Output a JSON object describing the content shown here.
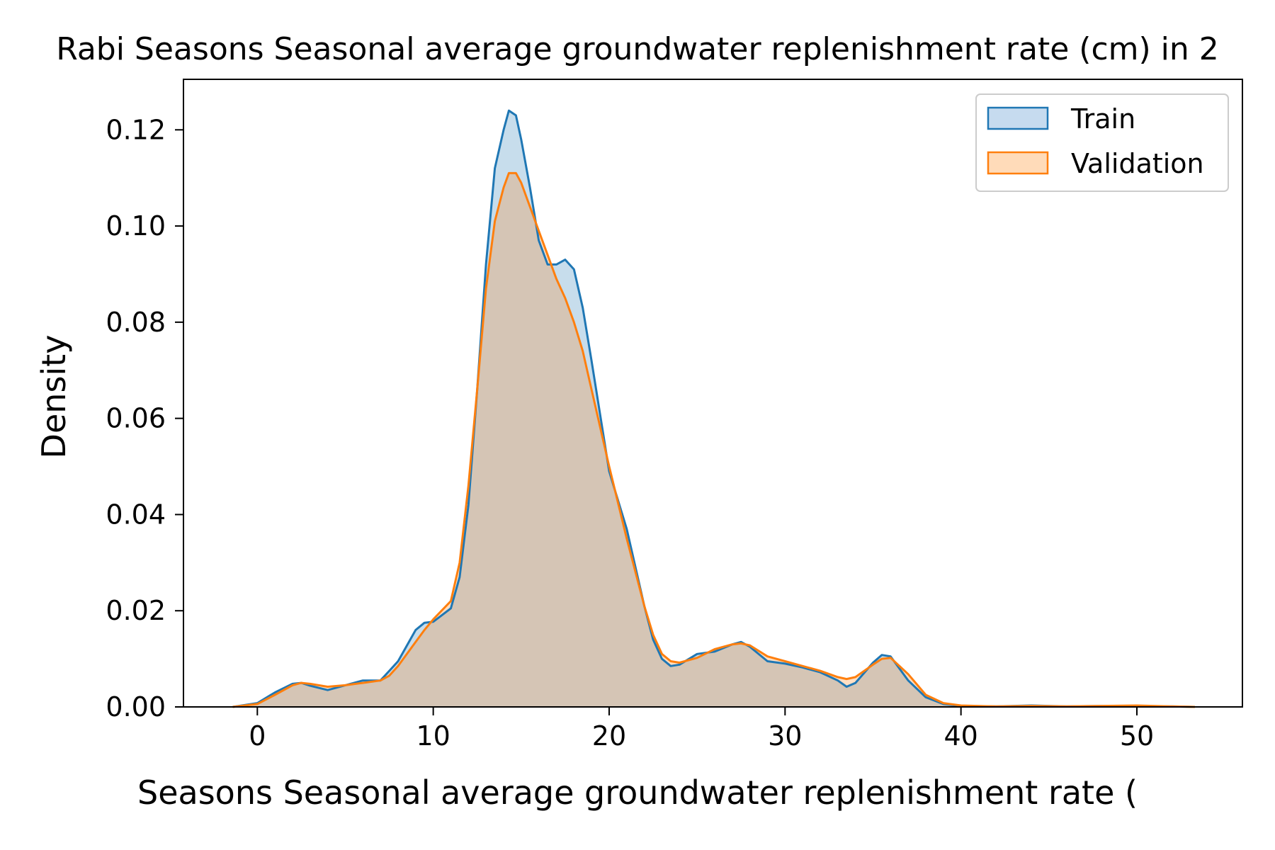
{
  "chart_data": {
    "type": "area",
    "title": "Rabi Seasons Seasonal average groundwater replenishment rate (cm) in 2",
    "xlabel": "Seasons Seasonal average groundwater replenishment rate (",
    "ylabel": "Density",
    "xlim": [
      -4.2,
      56
    ],
    "ylim": [
      0,
      0.1305
    ],
    "xticks": [
      0,
      10,
      20,
      30,
      40,
      50
    ],
    "yticks": [
      0.0,
      0.02,
      0.04,
      0.06,
      0.08,
      0.1,
      0.12
    ],
    "ytick_labels": [
      "0.00",
      "0.02",
      "0.04",
      "0.06",
      "0.08",
      "0.10",
      "0.12"
    ],
    "grid": false,
    "legend_position": "top-right",
    "series": [
      {
        "name": "Train",
        "color": "#1f77b4",
        "fill_color": "#c6dbef",
        "x": [
          -1.4,
          0,
          1,
          2,
          2.5,
          3,
          4,
          5,
          6,
          7,
          7.5,
          8,
          9,
          9.5,
          10,
          11,
          11.5,
          12,
          12.5,
          13,
          13.5,
          14,
          14.3,
          14.7,
          15,
          15.5,
          16,
          16.5,
          17,
          17.5,
          18,
          18.5,
          19,
          20,
          21,
          22,
          22.5,
          23,
          23.5,
          24,
          25,
          26,
          27,
          27.5,
          28,
          29,
          30,
          31,
          32,
          33,
          33.5,
          34,
          35,
          35.5,
          36,
          37,
          38,
          39,
          40,
          42,
          44,
          46,
          48,
          50,
          52,
          53.3
        ],
        "y": [
          0,
          0.0008,
          0.003,
          0.0048,
          0.005,
          0.0044,
          0.0035,
          0.0045,
          0.0055,
          0.0055,
          0.0075,
          0.0095,
          0.016,
          0.0175,
          0.0177,
          0.0205,
          0.027,
          0.042,
          0.066,
          0.092,
          0.112,
          0.12,
          0.124,
          0.123,
          0.118,
          0.108,
          0.097,
          0.092,
          0.092,
          0.093,
          0.091,
          0.083,
          0.072,
          0.049,
          0.037,
          0.021,
          0.014,
          0.01,
          0.0085,
          0.0088,
          0.011,
          0.0115,
          0.013,
          0.0135,
          0.0125,
          0.0095,
          0.009,
          0.0082,
          0.0072,
          0.0055,
          0.0042,
          0.005,
          0.0092,
          0.0108,
          0.0105,
          0.0055,
          0.002,
          0.0006,
          0.0002,
          0.0001,
          0.0003,
          0.0001,
          0.0002,
          0.0002,
          0.0001,
          0
        ]
      },
      {
        "name": "Validation",
        "color": "#ff7f0e",
        "fill_color": "#ffdbb9",
        "x": [
          -1.4,
          0,
          1,
          2,
          2.5,
          3,
          4,
          5,
          6,
          7,
          7.5,
          8,
          9,
          9.5,
          10,
          11,
          11.5,
          12,
          12.5,
          13,
          13.5,
          14,
          14.3,
          14.7,
          15,
          15.5,
          16,
          16.5,
          17,
          17.5,
          18,
          18.5,
          19,
          20,
          21,
          22,
          22.5,
          23,
          23.5,
          24,
          25,
          26,
          27,
          27.5,
          28,
          29,
          30,
          31,
          32,
          33,
          33.5,
          34,
          35,
          35.5,
          36,
          37,
          38,
          39,
          40,
          42,
          44,
          46,
          48,
          50,
          52,
          53.3
        ],
        "y": [
          0,
          0.0006,
          0.0025,
          0.0045,
          0.005,
          0.0048,
          0.0042,
          0.0045,
          0.005,
          0.0055,
          0.0065,
          0.0085,
          0.0135,
          0.016,
          0.0182,
          0.022,
          0.03,
          0.046,
          0.066,
          0.087,
          0.101,
          0.108,
          0.111,
          0.111,
          0.109,
          0.104,
          0.099,
          0.094,
          0.089,
          0.085,
          0.08,
          0.074,
          0.066,
          0.05,
          0.035,
          0.021,
          0.015,
          0.011,
          0.0095,
          0.0092,
          0.0102,
          0.012,
          0.013,
          0.0132,
          0.0128,
          0.0105,
          0.0095,
          0.0085,
          0.0075,
          0.0062,
          0.0058,
          0.0062,
          0.0088,
          0.01,
          0.0102,
          0.0068,
          0.0025,
          0.0008,
          0.0003,
          0.0001,
          0.0002,
          0.0001,
          0.0002,
          0.0003,
          0.0001,
          0
        ]
      }
    ]
  }
}
